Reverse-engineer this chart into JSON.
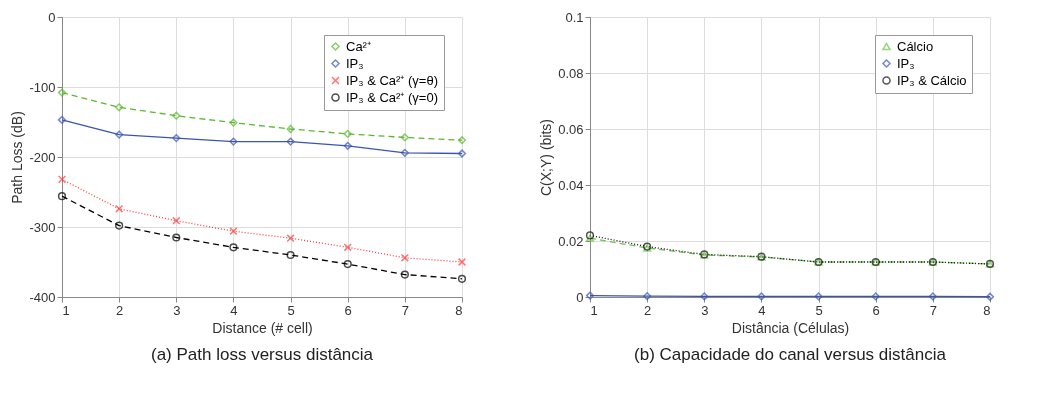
{
  "chart_data": [
    {
      "type": "line",
      "title": "(a) Path loss versus distância",
      "xlabel": "Distance (# cell)",
      "ylabel": "Path Loss (dB)",
      "x": [
        1,
        2,
        3,
        4,
        5,
        6,
        7,
        8
      ],
      "xlim": [
        1,
        8
      ],
      "xticks": [
        1,
        2,
        3,
        4,
        5,
        6,
        7,
        8
      ],
      "ylim": [
        -400,
        0
      ],
      "yticks": [
        -400,
        -300,
        -200,
        -100,
        0
      ],
      "grid": true,
      "legend": "top right",
      "series": [
        {
          "name": "Ca²⁺",
          "color": "#5ab82e",
          "marker": "diamond",
          "line_style": "dashed",
          "values": [
            -108,
            -129,
            -141,
            -151,
            -160,
            -167,
            -172,
            -176
          ]
        },
        {
          "name": "IP₃",
          "color": "#3a55b0",
          "marker": "diamond",
          "line_style": "solid",
          "values": [
            -147,
            -168,
            -173,
            -178,
            -178,
            -184,
            -194,
            -195
          ]
        },
        {
          "name": "IP₃ & Ca²⁺ (γ=θ)",
          "color": "#ff3b3b",
          "marker": "cross",
          "line_style": "dotted",
          "values": [
            -232,
            -274,
            -291,
            -306,
            -316,
            -329,
            -344,
            -350
          ]
        },
        {
          "name": "IP₃ & Ca²⁺ (γ=0)",
          "color": "#000000",
          "marker": "circle",
          "line_style": "dashed",
          "values": [
            -256,
            -298,
            -315,
            -329,
            -340,
            -353,
            -368,
            -374
          ]
        }
      ]
    },
    {
      "type": "line",
      "title": "(b) Capacidade do canal versus distância",
      "xlabel": "Distância (Células)",
      "ylabel": "C(X;Y) (bits)",
      "x": [
        1,
        2,
        3,
        4,
        5,
        6,
        7,
        8
      ],
      "xlim": [
        1,
        8
      ],
      "xticks": [
        1,
        2,
        3,
        4,
        5,
        6,
        7,
        8
      ],
      "ylim": [
        0,
        0.1
      ],
      "yticks": [
        0,
        0.02,
        0.04,
        0.06,
        0.08,
        0.1
      ],
      "grid": true,
      "legend": "top right",
      "series": [
        {
          "name": "Cálcio",
          "color": "#6cc24a",
          "marker": "triangle",
          "line_style": "dashed",
          "values": [
            0.021,
            0.0175,
            0.015,
            0.0143,
            0.0125,
            0.0125,
            0.0125,
            0.0118
          ]
        },
        {
          "name": "IP₃",
          "color": "#3a55b0",
          "marker": "diamond",
          "line_style": "solid",
          "values": [
            0.0005,
            0.0003,
            0.0002,
            0.0002,
            0.0002,
            0.0002,
            0.0002,
            0.0001
          ]
        },
        {
          "name": "IP₃ & Cálcio",
          "color": "#111111",
          "marker": "circle",
          "line_style": "dotted",
          "values": [
            0.022,
            0.018,
            0.0152,
            0.0144,
            0.0125,
            0.0125,
            0.0125,
            0.0118
          ]
        }
      ]
    }
  ]
}
